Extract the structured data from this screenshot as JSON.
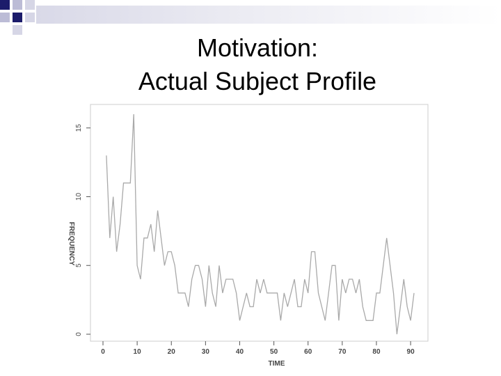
{
  "slide": {
    "title_line1": "Motivation:",
    "title_line2": "Actual Subject Profile"
  },
  "colors": {
    "deco_dark": "#1c1c6b",
    "deco_light": "#bcbcd6",
    "line": "#a9a9a9",
    "axis": "#555555"
  },
  "chart_data": {
    "type": "line",
    "xlabel": "TIME",
    "ylabel": "FREQUENCY",
    "xlim": [
      0,
      92
    ],
    "ylim": [
      0,
      16
    ],
    "xticks": [
      0,
      10,
      20,
      30,
      40,
      50,
      60,
      70,
      80,
      90
    ],
    "yticks": [
      0,
      5,
      10,
      15
    ],
    "grid": false,
    "series": [
      {
        "x": [
          1,
          2,
          3,
          4,
          5,
          6,
          7,
          8,
          9,
          10,
          11,
          12,
          13,
          14,
          15,
          16,
          17,
          18,
          19,
          20,
          21,
          22,
          23,
          24,
          25,
          26,
          27,
          28,
          29,
          30,
          31,
          32,
          33,
          34,
          35,
          36,
          37,
          38,
          39,
          40,
          41,
          42,
          43,
          44,
          45,
          46,
          47,
          48,
          49,
          50,
          51,
          52,
          53,
          54,
          55,
          56,
          57,
          58,
          59,
          60,
          61,
          62,
          63,
          64,
          65,
          66,
          67,
          68,
          69,
          70,
          71,
          72,
          73,
          74,
          75,
          76,
          77,
          78,
          79,
          80,
          81,
          82,
          83,
          84,
          85,
          86,
          87,
          88,
          89,
          90,
          91
        ],
        "y": [
          13,
          7,
          10,
          6,
          8,
          11,
          11,
          11,
          16,
          5,
          4,
          7,
          7,
          8,
          6,
          9,
          7,
          5,
          6,
          6,
          5,
          3,
          3,
          3,
          2,
          4,
          5,
          5,
          4,
          2,
          5,
          3,
          2,
          5,
          3,
          4,
          4,
          4,
          3,
          1,
          2,
          3,
          2,
          2,
          4,
          3,
          4,
          3,
          3,
          3,
          3,
          1,
          3,
          2,
          3,
          4,
          2,
          2,
          4,
          3,
          6,
          6,
          3,
          2,
          1,
          3,
          5,
          5,
          1,
          4,
          3,
          4,
          4,
          3,
          4,
          2,
          1,
          1,
          1,
          3,
          3,
          5,
          7,
          5,
          3,
          0,
          2,
          4,
          2,
          1,
          3
        ]
      }
    ]
  }
}
